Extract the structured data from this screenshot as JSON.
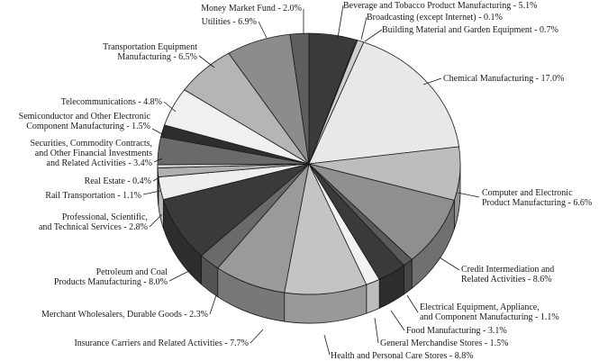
{
  "chart_data": {
    "type": "pie",
    "style": "3d-exploded-disc",
    "title": "",
    "slices": [
      {
        "label": "Beverage and Tobacco Product Manufacturing - 5.1%",
        "category": "Beverage and Tobacco Product Manufacturing",
        "value": 5.1,
        "color": "#3a3a3a"
      },
      {
        "label": "Broadcasting (except Internet) - 0.1%",
        "category": "Broadcasting (except Internet)",
        "value": 0.1,
        "color": "#8a8a8a"
      },
      {
        "label": "Building Material and Garden Equipment - 0.7%",
        "category": "Building Material and Garden Equipment",
        "value": 0.7,
        "color": "#cfcfcf"
      },
      {
        "label": "Chemical Manufacturing - 17.0%",
        "category": "Chemical Manufacturing",
        "value": 17.0,
        "color": "#e8e8e8"
      },
      {
        "label": "Computer and Electronic Product Manufacturing - 6.6%",
        "category": "Computer and Electronic Product Manufacturing",
        "value": 6.6,
        "color": "#bdbdbd"
      },
      {
        "label": "Credit Intermediation and Related Activities - 8.6%",
        "category": "Credit Intermediation and Related Activities",
        "value": 8.6,
        "color": "#8f8f8f"
      },
      {
        "label": "Electrical Equipment, Appliance, and Component Manufacturing - 1.1%",
        "category": "Electrical Equipment, Appliance, and Component Manufacturing",
        "value": 1.1,
        "color": "#5a5a5a"
      },
      {
        "label": "Food Manufacturing - 3.1%",
        "category": "Food Manufacturing",
        "value": 3.1,
        "color": "#3a3a3a"
      },
      {
        "label": "General Merchandise Stores - 1.5%",
        "category": "General Merchandise Stores",
        "value": 1.5,
        "color": "#f2f2f2"
      },
      {
        "label": "Health and Personal Care Stores - 8.8%",
        "category": "Health and Personal Care Stores",
        "value": 8.8,
        "color": "#c4c4c4"
      },
      {
        "label": "Insurance Carriers and Related Activities - 7.7%",
        "category": "Insurance Carriers and Related Activities",
        "value": 7.7,
        "color": "#9a9a9a"
      },
      {
        "label": "Merchant Wholesalers, Durable Goods - 2.3%",
        "category": "Merchant Wholesalers, Durable Goods",
        "value": 2.3,
        "color": "#6a6a6a"
      },
      {
        "label": "Petroleum and Coal Products Manufacturing - 8.0%",
        "category": "Petroleum and Coal Products Manufacturing",
        "value": 8.0,
        "color": "#3a3a3a"
      },
      {
        "label": "Professional, Scientific, and Technical Services - 2.8%",
        "category": "Professional, Scientific, and Technical Services",
        "value": 2.8,
        "color": "#eeeeee"
      },
      {
        "label": "Rail Transportation - 1.1%",
        "category": "Rail Transportation",
        "value": 1.1,
        "color": "#b0b0b0"
      },
      {
        "label": "Real Estate - 0.4%",
        "category": "Real Estate",
        "value": 0.4,
        "color": "#d8d8d8"
      },
      {
        "label": "Securities, Commodity Contracts, and Other Financial Investments and Related Activities - 3.4%",
        "category": "Securities, Commodity Contracts, and Other Financial Investments and Related Activities",
        "value": 3.4,
        "color": "#6a6a6a"
      },
      {
        "label": "Semiconductor and Other Electronic Component Manufacturing - 1.5%",
        "category": "Semiconductor and Other Electronic Component Manufacturing",
        "value": 1.5,
        "color": "#2e2e2e"
      },
      {
        "label": "Telecommunications - 4.8%",
        "category": "Telecommunications",
        "value": 4.8,
        "color": "#f0f0f0"
      },
      {
        "label": "Transportation Equipment Manufacturing - 6.5%",
        "category": "Transportation Equipment Manufacturing",
        "value": 6.5,
        "color": "#b5b5b5"
      },
      {
        "label": "Utilities - 6.9%",
        "category": "Utilities",
        "value": 6.9,
        "color": "#8c8c8c"
      },
      {
        "label": "Money Market Fund - 2.0%",
        "category": "Money Market Fund",
        "value": 2.0,
        "color": "#5e5e5e"
      }
    ]
  }
}
